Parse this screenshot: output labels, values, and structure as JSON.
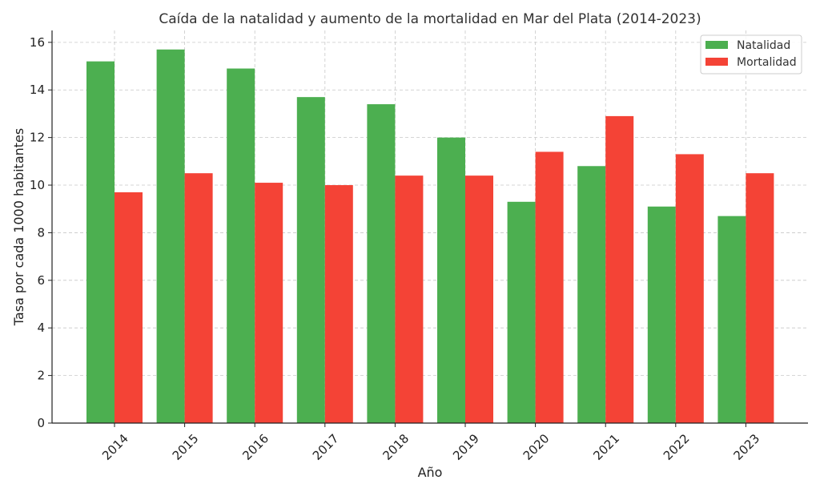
{
  "chart_data": {
    "type": "bar",
    "title": "Caída de la natalidad y aumento de la mortalidad en Mar del Plata (2014-2023)",
    "xlabel": "Año",
    "ylabel": "Tasa por cada 1000 habitantes",
    "categories": [
      "2014",
      "2015",
      "2016",
      "2017",
      "2018",
      "2019",
      "2020",
      "2021",
      "2022",
      "2023"
    ],
    "series": [
      {
        "name": "Natalidad",
        "color": "#4caf50",
        "values": [
          15.2,
          15.7,
          14.9,
          13.7,
          13.4,
          12.0,
          9.3,
          10.8,
          9.1,
          8.7
        ]
      },
      {
        "name": "Mortalidad",
        "color": "#f44336",
        "values": [
          9.7,
          10.5,
          10.1,
          10.0,
          10.4,
          10.4,
          11.4,
          12.9,
          11.3,
          10.5
        ]
      }
    ],
    "ylim": [
      0,
      16.5
    ],
    "yticks": [
      0,
      2,
      4,
      6,
      8,
      10,
      12,
      14,
      16
    ],
    "grid": true,
    "legend_position": "top-right"
  }
}
